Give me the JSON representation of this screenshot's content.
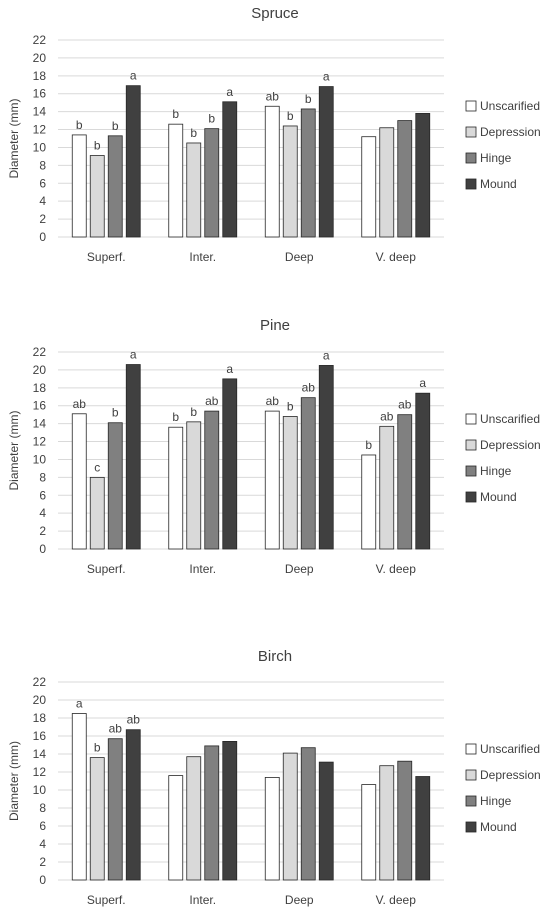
{
  "chart_data": [
    {
      "type": "bar",
      "title": "Spruce",
      "ylabel": "Diameter (mm)",
      "ylim": [
        0,
        22
      ],
      "yticks": [
        0,
        2,
        4,
        6,
        8,
        10,
        12,
        14,
        16,
        18,
        20,
        22
      ],
      "categories": [
        "Superf.",
        "Inter.",
        "Deep",
        "V. deep"
      ],
      "grid": true,
      "legend": "right",
      "series": [
        {
          "name": "Unscarified",
          "color": "#ffffff",
          "values": [
            11.4,
            12.6,
            14.6,
            11.2
          ],
          "labels": [
            "b",
            "b",
            "ab",
            ""
          ]
        },
        {
          "name": "Depression",
          "color": "#d9d9d9",
          "values": [
            9.1,
            10.5,
            12.4,
            12.2
          ],
          "labels": [
            "b",
            "b",
            "b",
            ""
          ]
        },
        {
          "name": "Hinge",
          "color": "#808080",
          "values": [
            11.3,
            12.1,
            14.3,
            13.0
          ],
          "labels": [
            "b",
            "b",
            "b",
            ""
          ]
        },
        {
          "name": "Mound",
          "color": "#404040",
          "values": [
            16.9,
            15.1,
            16.8,
            13.8
          ],
          "labels": [
            "a",
            "a",
            "a",
            ""
          ]
        }
      ]
    },
    {
      "type": "bar",
      "title": "Pine",
      "ylabel": "Diameter (mm)",
      "ylim": [
        0,
        22
      ],
      "yticks": [
        0,
        2,
        4,
        6,
        8,
        10,
        12,
        14,
        16,
        18,
        20,
        22
      ],
      "categories": [
        "Superf.",
        "Inter.",
        "Deep",
        "V. deep"
      ],
      "grid": true,
      "legend": "right",
      "series": [
        {
          "name": "Unscarified",
          "color": "#ffffff",
          "values": [
            15.1,
            13.6,
            15.4,
            10.5
          ],
          "labels": [
            "ab",
            "b",
            "ab",
            "b"
          ]
        },
        {
          "name": "Depression",
          "color": "#d9d9d9",
          "values": [
            8.0,
            14.2,
            14.8,
            13.7
          ],
          "labels": [
            "c",
            "b",
            "b",
            "ab"
          ]
        },
        {
          "name": "Hinge",
          "color": "#808080",
          "values": [
            14.1,
            15.4,
            16.9,
            15.0
          ],
          "labels": [
            "b",
            "ab",
            "ab",
            "ab"
          ]
        },
        {
          "name": "Mound",
          "color": "#404040",
          "values": [
            20.6,
            19.0,
            20.5,
            17.4
          ],
          "labels": [
            "a",
            "a",
            "a",
            "a"
          ]
        }
      ]
    },
    {
      "type": "bar",
      "title": "Birch",
      "ylabel": "Diameter (mm)",
      "ylim": [
        0,
        22
      ],
      "yticks": [
        0,
        2,
        4,
        6,
        8,
        10,
        12,
        14,
        16,
        18,
        20,
        22
      ],
      "categories": [
        "Superf.",
        "Inter.",
        "Deep",
        "V. deep"
      ],
      "grid": true,
      "legend": "right",
      "series": [
        {
          "name": "Unscarified",
          "color": "#ffffff",
          "values": [
            18.5,
            11.6,
            11.4,
            10.6
          ],
          "labels": [
            "a",
            "",
            "",
            ""
          ]
        },
        {
          "name": "Depression",
          "color": "#d9d9d9",
          "values": [
            13.6,
            13.7,
            14.1,
            12.7
          ],
          "labels": [
            "b",
            "",
            "",
            ""
          ]
        },
        {
          "name": "Hinge",
          "color": "#808080",
          "values": [
            15.7,
            14.9,
            14.7,
            13.2
          ],
          "labels": [
            "ab",
            "",
            "",
            ""
          ]
        },
        {
          "name": "Mound",
          "color": "#404040",
          "values": [
            16.7,
            15.4,
            13.1,
            11.5
          ],
          "labels": [
            "ab",
            "",
            "",
            ""
          ]
        }
      ]
    }
  ]
}
